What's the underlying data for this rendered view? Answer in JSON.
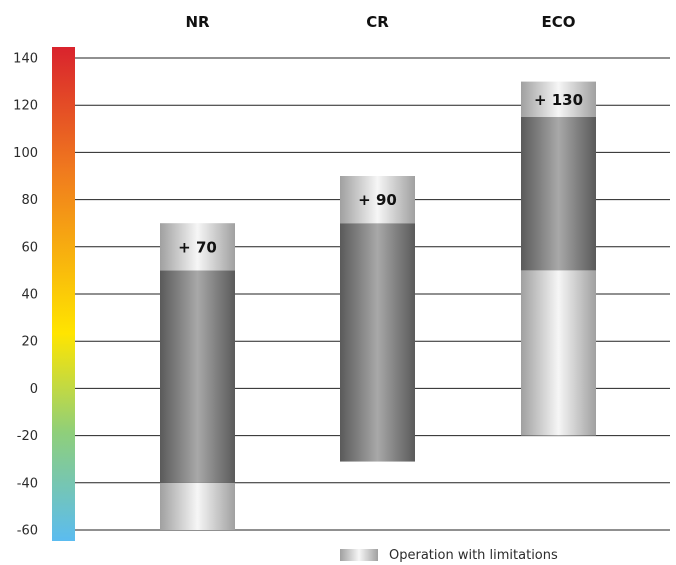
{
  "chart_data": {
    "type": "bar",
    "ylim": [
      -60,
      145
    ],
    "yticks": [
      -60,
      -40,
      -20,
      0,
      20,
      40,
      60,
      80,
      100,
      120,
      140
    ],
    "ytick_labels": [
      "-60",
      "-40",
      "-20",
      "0",
      "20",
      "40",
      "60",
      "80",
      "100",
      "120",
      "140"
    ],
    "grid": true,
    "categories": [
      "NR",
      "CR",
      "ECO"
    ],
    "bars": [
      {
        "category": "NR",
        "limited_low": [
          -60,
          -40
        ],
        "normal": [
          -40,
          50
        ],
        "limited_high": [
          50,
          70
        ],
        "max_label": "+ 70"
      },
      {
        "category": "CR",
        "normal": [
          -31,
          70
        ],
        "limited_high": [
          70,
          90
        ],
        "max_label": "+ 90"
      },
      {
        "category": "ECO",
        "limited_low": [
          -20,
          50
        ],
        "normal": [
          50,
          115
        ],
        "limited_high": [
          115,
          130
        ],
        "max_label": "+ 130"
      }
    ],
    "legend": {
      "position": "bottom-right",
      "label": "Operation with limitations"
    },
    "colors": {
      "normal_edge": "#5a5a5a",
      "normal_center": "#a8a8a8",
      "limited_edge": "#a0a0a0",
      "limited_center": "#f6f6f6",
      "scale_top": "#d9232d",
      "scale_mid": "#ffe500",
      "scale_bottom": "#5bbcf0",
      "grid": "#222222"
    }
  }
}
